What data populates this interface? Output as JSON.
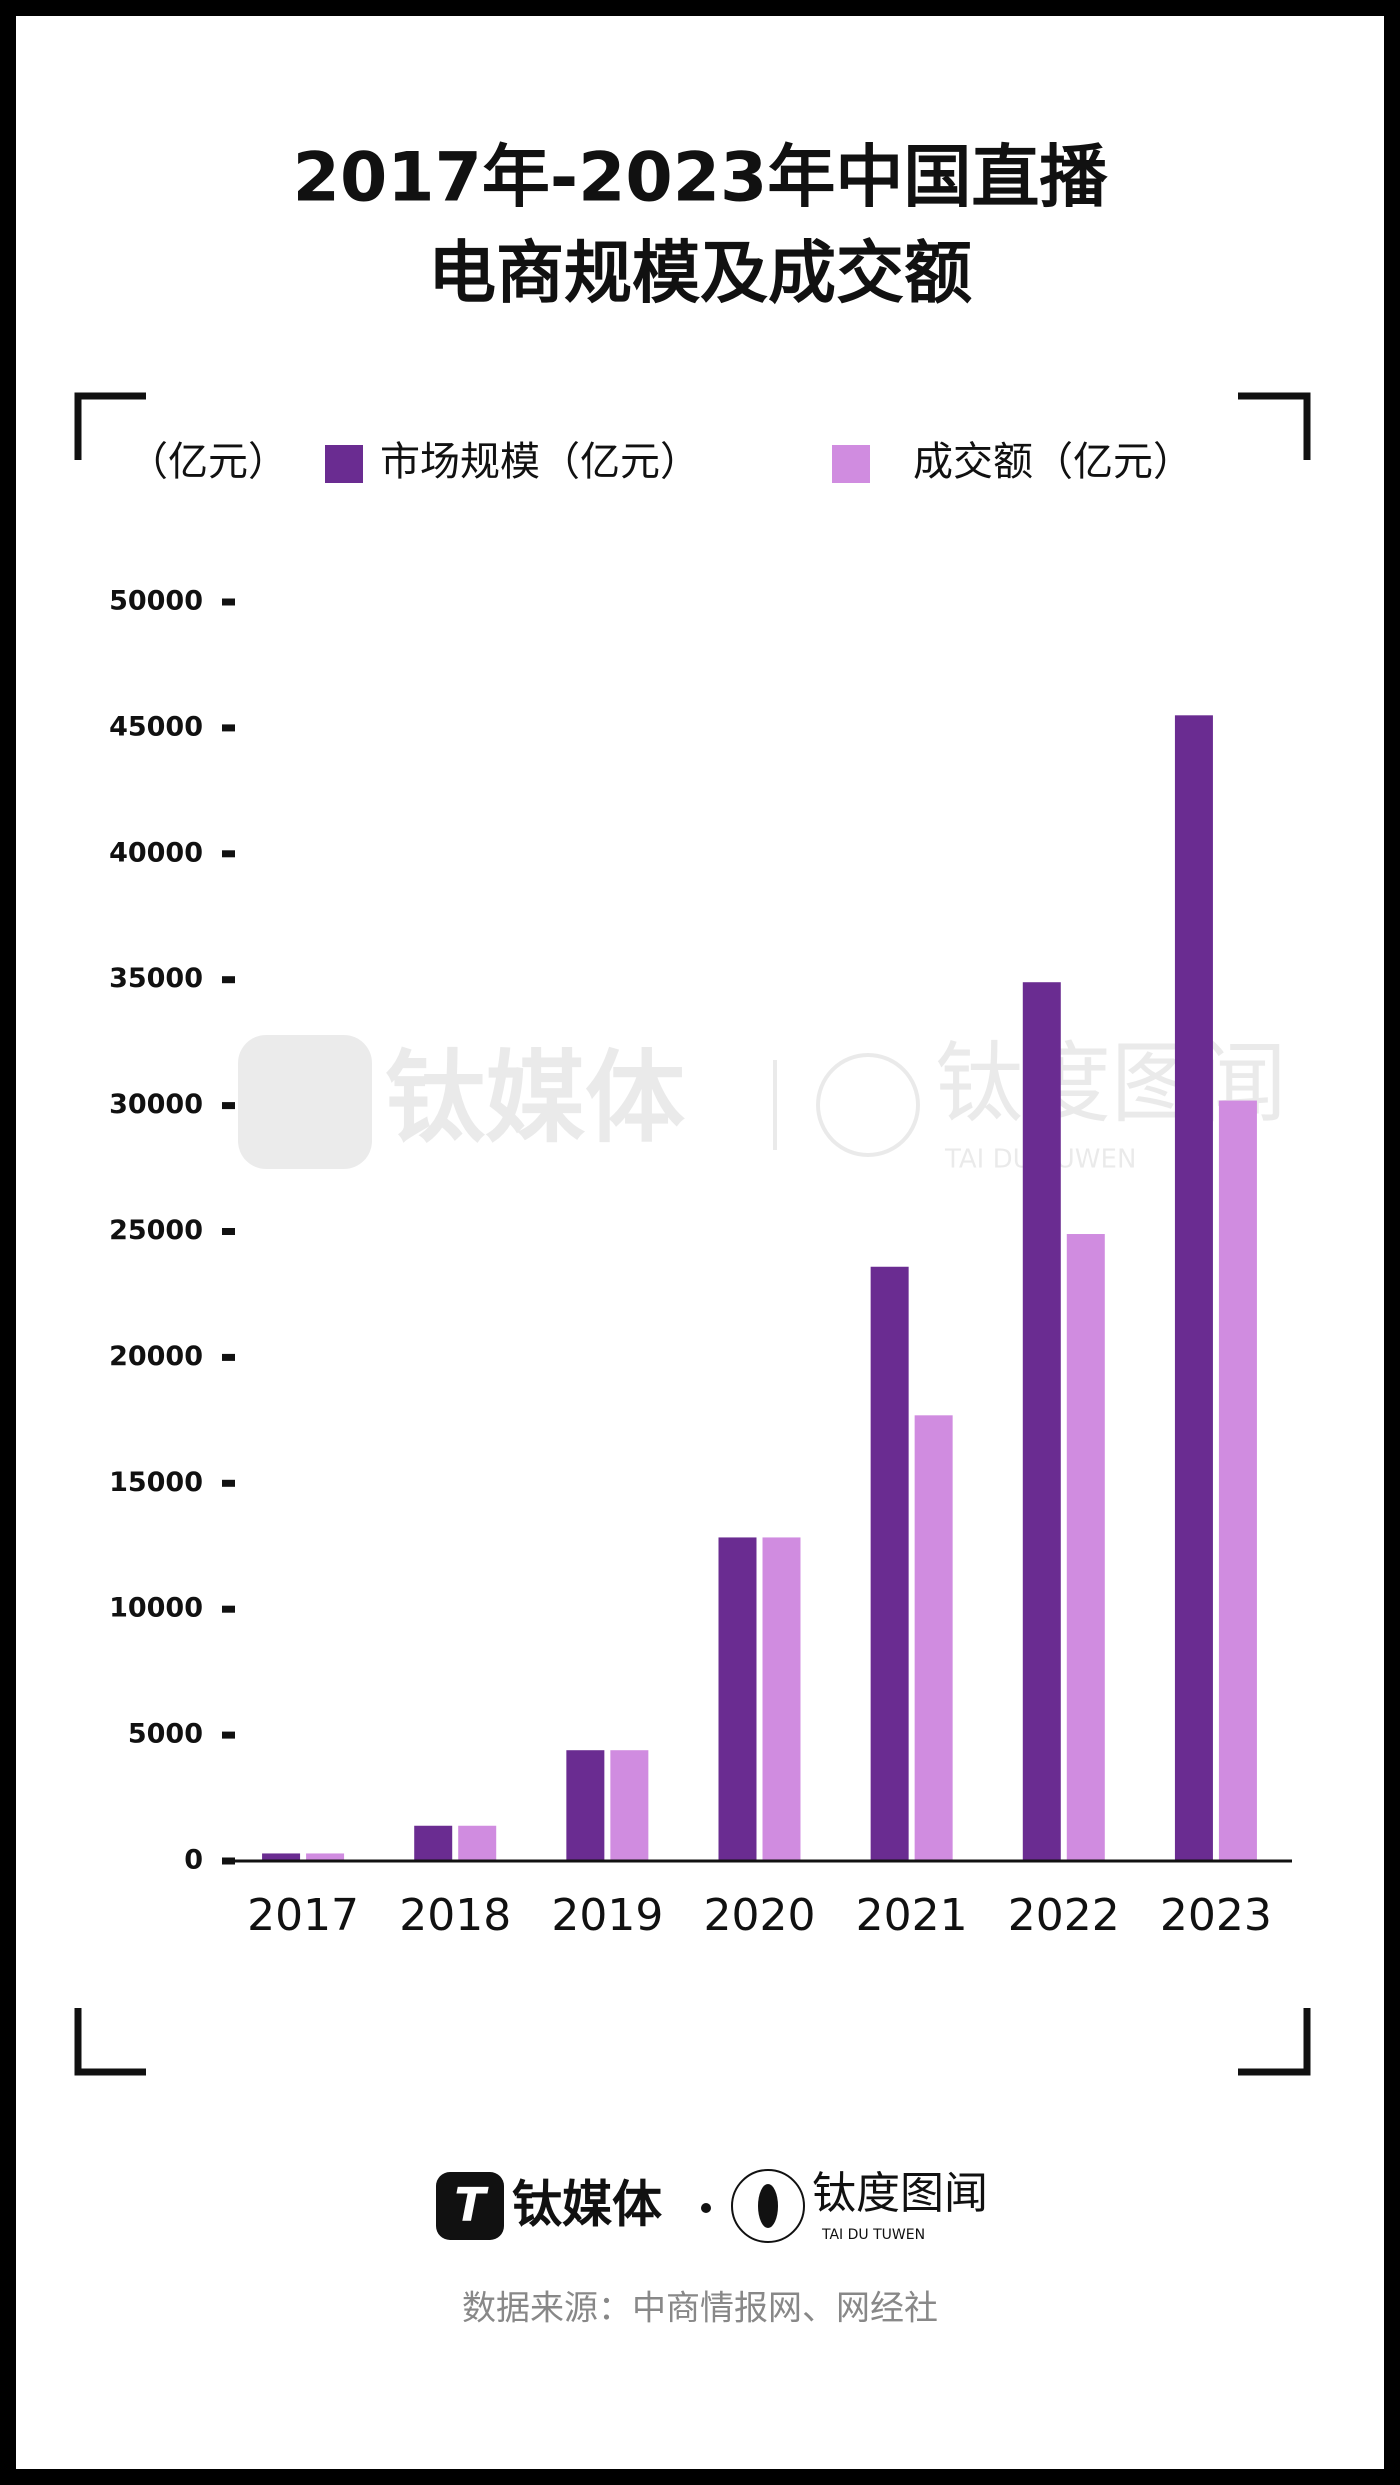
{
  "chart_data": {
    "type": "bar",
    "title": [
      "2017年-2023年中国直播",
      "电商规模及成交额"
    ],
    "ylabel": "（亿元）",
    "categories": [
      "2017",
      "2018",
      "2019",
      "2020",
      "2021",
      "2022",
      "2023"
    ],
    "series": [
      {
        "name": "市场规模（亿元）",
        "color": "#6a2c91",
        "values": [
          300,
          1400,
          4400,
          12850,
          23600,
          34900,
          45500
        ]
      },
      {
        "name": "成交额（亿元）",
        "color": "#d08ce0",
        "values": [
          300,
          1400,
          4400,
          12850,
          17700,
          24900,
          30200
        ]
      }
    ],
    "ylim": [
      0,
      50000
    ],
    "yticks": [
      0,
      5000,
      10000,
      15000,
      20000,
      25000,
      30000,
      35000,
      40000,
      45000,
      50000
    ],
    "grid": false,
    "source": "数据来源：中商情报网、网经社"
  },
  "brand": {
    "name": "钛媒体",
    "partner": "钛度图闻",
    "partner_en": "TAI DU TUWEN"
  }
}
